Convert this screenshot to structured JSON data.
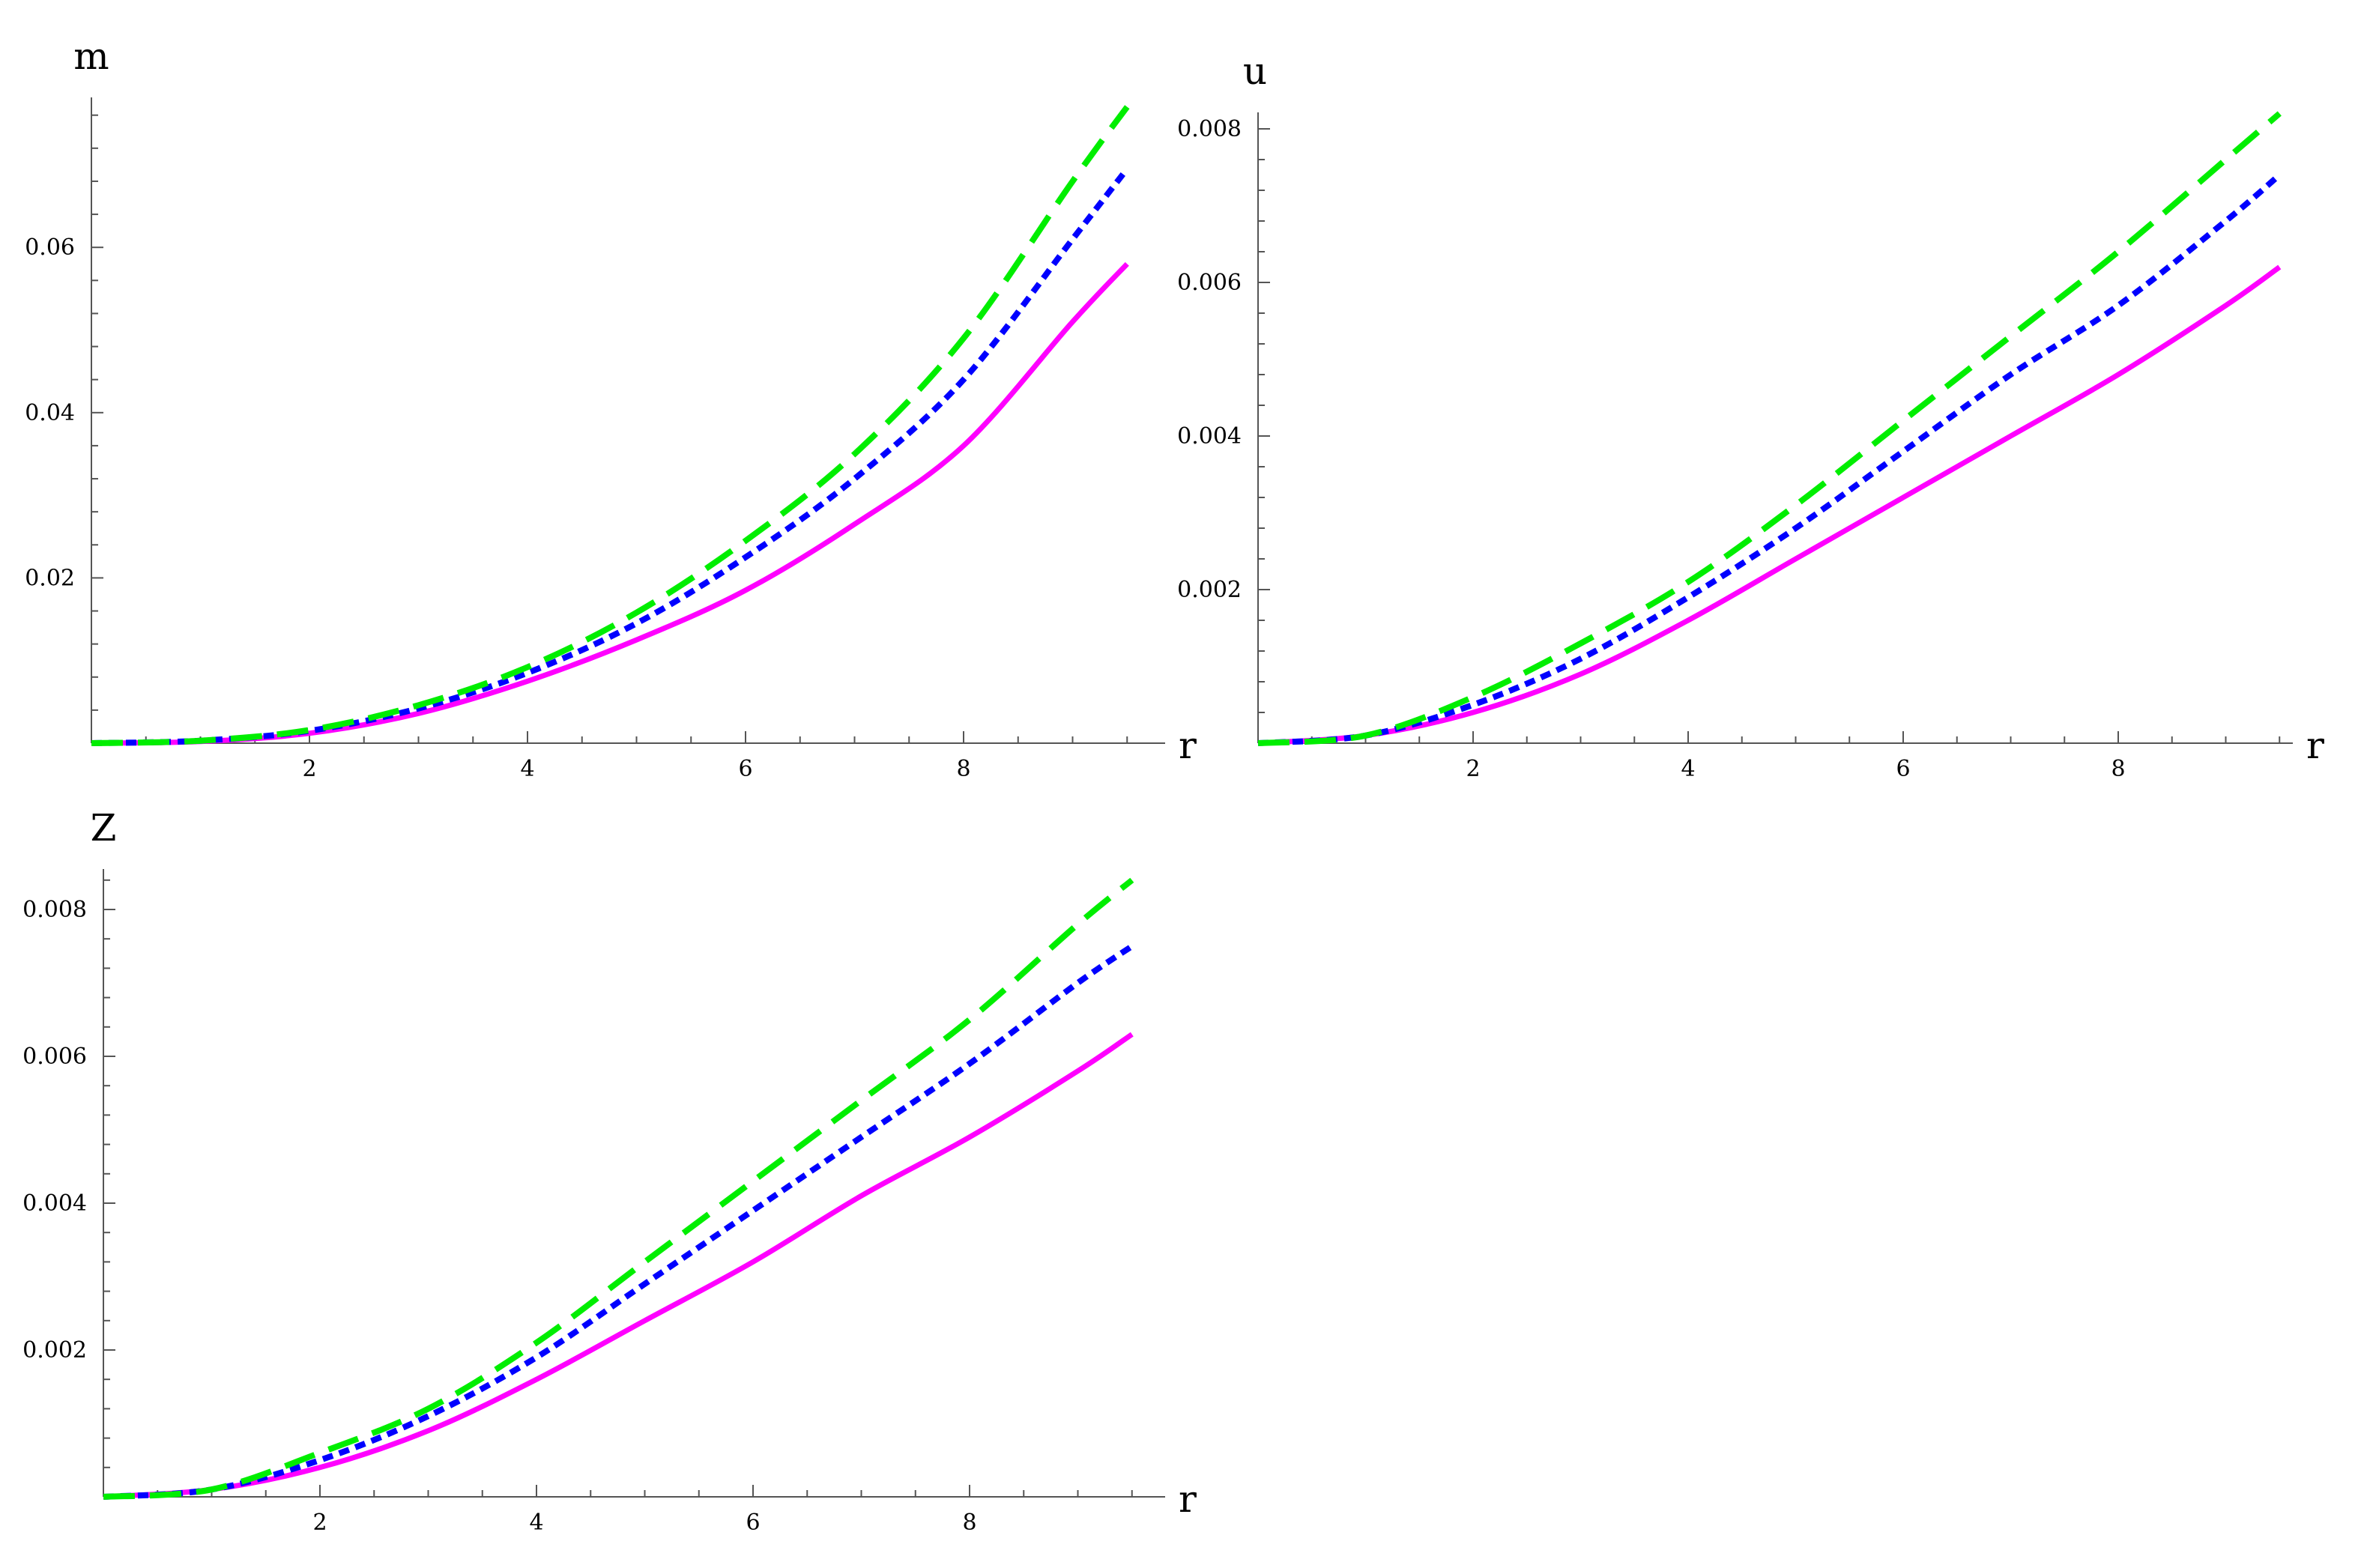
{
  "chart_data": [
    {
      "type": "line",
      "ylabel": "m",
      "xlabel": "r",
      "xlim": [
        0,
        9.5
      ],
      "ylim": [
        0,
        0.078
      ],
      "x_ticks": [
        2,
        4,
        6,
        8
      ],
      "x_tick_labels": [
        "2",
        "4",
        "6",
        "8"
      ],
      "y_ticks": [
        0.02,
        0.04,
        0.06
      ],
      "y_tick_labels": [
        "0.02",
        "0.04",
        "0.06"
      ],
      "grid": false,
      "series": [
        {
          "color": "#ff00ff",
          "style": "solid",
          "x": [
            0,
            1,
            2,
            3,
            4,
            5,
            6,
            7,
            8,
            9,
            9.5
          ],
          "y": [
            0,
            0.0002,
            0.0012,
            0.0036,
            0.0075,
            0.0125,
            0.0185,
            0.0265,
            0.036,
            0.051,
            0.058
          ]
        },
        {
          "color": "#0000ff",
          "style": "dotted",
          "x": [
            0,
            1,
            2,
            3,
            4,
            5,
            6,
            7,
            8,
            9,
            9.5
          ],
          "y": [
            0,
            0.0003,
            0.0015,
            0.0042,
            0.0085,
            0.0145,
            0.0225,
            0.032,
            0.044,
            0.061,
            0.0695
          ]
        },
        {
          "color": "#00ee00",
          "style": "dashed",
          "x": [
            0,
            1,
            2,
            3,
            4,
            5,
            6,
            7,
            8,
            9,
            9.5
          ],
          "y": [
            0,
            0.0003,
            0.0016,
            0.0046,
            0.0092,
            0.0158,
            0.0245,
            0.035,
            0.049,
            0.068,
            0.077
          ]
        }
      ]
    },
    {
      "type": "line",
      "ylabel": "u",
      "xlabel": "r",
      "xlim": [
        0,
        9.5
      ],
      "ylim": [
        0,
        0.0082
      ],
      "x_ticks": [
        2,
        4,
        6,
        8
      ],
      "x_tick_labels": [
        "2",
        "4",
        "6",
        "8"
      ],
      "y_ticks": [
        0.002,
        0.004,
        0.006,
        0.008
      ],
      "y_tick_labels": [
        "0.002",
        "0.004",
        "0.006",
        "0.008"
      ],
      "grid": false,
      "series": [
        {
          "color": "#ff00ff",
          "style": "solid",
          "x": [
            0,
            1,
            2,
            3,
            4,
            5,
            6,
            7,
            8,
            9,
            9.5
          ],
          "y": [
            0,
            0.0001,
            0.0004,
            0.0009,
            0.0016,
            0.0024,
            0.0032,
            0.004,
            0.0048,
            0.0057,
            0.0062
          ]
        },
        {
          "color": "#0000ff",
          "style": "dotted",
          "x": [
            0,
            1,
            2,
            3,
            4,
            5,
            6,
            7,
            8,
            9,
            9.5
          ],
          "y": [
            0,
            0.0001,
            0.0005,
            0.0011,
            0.0019,
            0.0028,
            0.0038,
            0.0048,
            0.0057,
            0.0068,
            0.0074
          ]
        },
        {
          "color": "#00ee00",
          "style": "dashed",
          "x": [
            0,
            1,
            2,
            3,
            4,
            5,
            6,
            7,
            8,
            9,
            9.5
          ],
          "y": [
            0,
            0.0001,
            0.0006,
            0.0013,
            0.0021,
            0.0031,
            0.0042,
            0.0053,
            0.0064,
            0.0076,
            0.0082
          ]
        }
      ]
    },
    {
      "type": "line",
      "ylabel": "Z",
      "xlabel": "r",
      "xlim": [
        0,
        9.5
      ],
      "ylim": [
        0,
        0.0084
      ],
      "x_ticks": [
        2,
        4,
        6,
        8
      ],
      "x_tick_labels": [
        "2",
        "4",
        "6",
        "8"
      ],
      "y_ticks": [
        0.002,
        0.004,
        0.006,
        0.008
      ],
      "y_tick_labels": [
        "0.002",
        "0.004",
        "0.006",
        "0.008"
      ],
      "grid": false,
      "series": [
        {
          "color": "#ff00ff",
          "style": "solid",
          "x": [
            0,
            1,
            2,
            3,
            4,
            5,
            6,
            7,
            8,
            9,
            9.5
          ],
          "y": [
            0,
            0.0001,
            0.0004,
            0.0009,
            0.0016,
            0.0024,
            0.0032,
            0.0041,
            0.0049,
            0.0058,
            0.0063
          ]
        },
        {
          "color": "#0000ff",
          "style": "dotted",
          "x": [
            0,
            1,
            2,
            3,
            4,
            5,
            6,
            7,
            8,
            9,
            9.5
          ],
          "y": [
            0,
            0.0001,
            0.0005,
            0.0011,
            0.0019,
            0.0029,
            0.0039,
            0.0049,
            0.0059,
            0.007,
            0.0075
          ]
        },
        {
          "color": "#00ee00",
          "style": "dashed",
          "x": [
            0,
            1,
            2,
            3,
            4,
            5,
            6,
            7,
            8,
            9,
            9.5
          ],
          "y": [
            0,
            0.0001,
            0.0006,
            0.0012,
            0.0021,
            0.0032,
            0.0043,
            0.0054,
            0.0065,
            0.0078,
            0.0084
          ]
        }
      ]
    }
  ]
}
